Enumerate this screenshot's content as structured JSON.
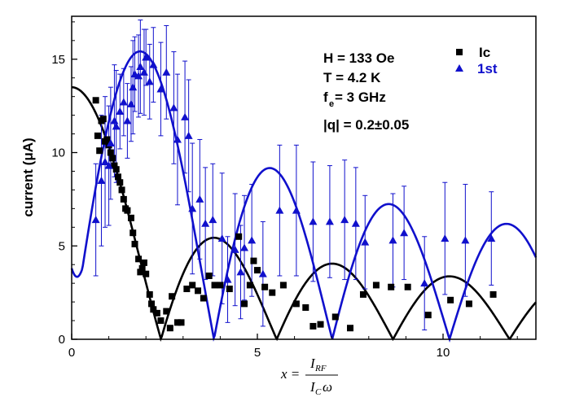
{
  "chart_data": {
    "type": "scatter",
    "title": "",
    "xlabel_parts": {
      "lhs": "x = ",
      "num": "I",
      "num_sub": "RF",
      "den": "I",
      "den_sub": "C",
      "den_tail": "ω"
    },
    "ylabel": "current (μA)",
    "xlim": [
      0,
      12.5
    ],
    "ylim": [
      0,
      17.3
    ],
    "xticks": [
      0,
      5,
      10
    ],
    "yticks": [
      0,
      5,
      10,
      15
    ],
    "xtick_labels": [
      "0",
      "5",
      "10"
    ],
    "ytick_labels": [
      "0",
      "5",
      "10",
      "15"
    ],
    "legend_position": "top-right",
    "annotations": [
      "H = 133 Oe",
      "T = 4.2 K",
      "f",
      "e",
      " = 3 GHz",
      "|q| = 0.2±0.05"
    ],
    "series": [
      {
        "name": "Ic",
        "marker": "square",
        "color": "#000000",
        "points": [
          [
            0.65,
            12.8
          ],
          [
            0.7,
            10.9
          ],
          [
            0.75,
            10.1
          ],
          [
            0.8,
            11.7
          ],
          [
            0.85,
            11.8
          ],
          [
            0.9,
            10.6
          ],
          [
            0.95,
            10.7
          ],
          [
            1.0,
            10.4
          ],
          [
            1.05,
            10.0
          ],
          [
            1.1,
            9.7
          ],
          [
            1.15,
            9.3
          ],
          [
            1.2,
            9.1
          ],
          [
            1.25,
            8.7
          ],
          [
            1.3,
            8.4
          ],
          [
            1.35,
            8.0
          ],
          [
            1.4,
            7.5
          ],
          [
            1.45,
            7.0
          ],
          [
            1.5,
            6.9
          ],
          [
            1.6,
            6.5
          ],
          [
            1.65,
            5.7
          ],
          [
            1.7,
            5.1
          ],
          [
            1.8,
            4.3
          ],
          [
            1.85,
            3.6
          ],
          [
            1.9,
            3.8
          ],
          [
            1.95,
            4.1
          ],
          [
            2.0,
            3.5
          ],
          [
            2.1,
            2.4
          ],
          [
            2.15,
            1.9
          ],
          [
            2.2,
            1.6
          ],
          [
            2.3,
            1.4
          ],
          [
            2.4,
            1.0
          ],
          [
            2.55,
            1.5
          ],
          [
            2.65,
            0.6
          ],
          [
            2.7,
            2.3
          ],
          [
            2.85,
            0.9
          ],
          [
            2.95,
            0.9
          ],
          [
            3.1,
            2.7
          ],
          [
            3.25,
            2.9
          ],
          [
            3.4,
            2.6
          ],
          [
            3.55,
            2.2
          ],
          [
            3.7,
            3.4
          ],
          [
            3.85,
            2.9
          ],
          [
            4.0,
            2.9
          ],
          [
            4.25,
            2.7
          ],
          [
            4.5,
            5.5
          ],
          [
            4.65,
            1.9
          ],
          [
            4.8,
            2.9
          ],
          [
            4.9,
            4.2
          ],
          [
            5.0,
            3.7
          ],
          [
            5.2,
            2.8
          ],
          [
            5.4,
            2.5
          ],
          [
            5.7,
            2.9
          ],
          [
            6.05,
            1.9
          ],
          [
            6.3,
            1.7
          ],
          [
            6.5,
            0.7
          ],
          [
            6.7,
            0.8
          ],
          [
            7.1,
            1.2
          ],
          [
            7.5,
            0.6
          ],
          [
            7.85,
            2.4
          ],
          [
            8.2,
            2.9
          ],
          [
            8.6,
            2.8
          ],
          [
            9.05,
            2.8
          ],
          [
            9.6,
            1.3
          ],
          [
            10.2,
            2.1
          ],
          [
            10.7,
            1.9
          ],
          [
            11.35,
            2.4
          ]
        ]
      },
      {
        "name": "1st",
        "marker": "triangle",
        "color": "#1010cc",
        "points": [
          [
            0.65,
            6.4,
            3.0
          ],
          [
            0.8,
            8.5,
            3.5
          ],
          [
            0.9,
            9.5,
            3.5
          ],
          [
            1.0,
            9.3,
            3.2
          ],
          [
            1.05,
            10.5,
            3.0
          ],
          [
            1.15,
            11.7,
            3.0
          ],
          [
            1.2,
            11.4,
            3.0
          ],
          [
            1.3,
            12.2,
            2.0
          ],
          [
            1.4,
            12.7,
            1.8
          ],
          [
            1.5,
            11.7,
            2.0
          ],
          [
            1.6,
            12.6,
            2.0
          ],
          [
            1.65,
            13.5,
            2.5
          ],
          [
            1.7,
            14.2,
            2.0
          ],
          [
            1.8,
            14.1,
            2.2
          ],
          [
            1.85,
            14.6,
            2.5
          ],
          [
            1.95,
            14.3,
            2.3
          ],
          [
            2.0,
            15.1,
            1.5
          ],
          [
            2.1,
            13.8,
            2.0
          ],
          [
            2.2,
            14.7,
            2.0
          ],
          [
            2.4,
            13.4,
            2.5
          ],
          [
            2.55,
            14.3,
            2.5
          ],
          [
            2.75,
            12.4,
            3.0
          ],
          [
            2.85,
            10.7,
            3.5
          ],
          [
            3.05,
            11.9,
            3.0
          ],
          [
            3.15,
            10.9,
            3.0
          ],
          [
            3.25,
            7.0,
            3.5
          ],
          [
            3.45,
            7.5,
            3.2
          ],
          [
            3.6,
            6.2,
            3.0
          ],
          [
            3.8,
            6.4,
            3.0
          ],
          [
            4.05,
            5.4,
            3.5
          ],
          [
            4.2,
            3.2,
            2.3
          ],
          [
            4.4,
            4.8,
            3.0
          ],
          [
            4.55,
            3.6,
            2.5
          ],
          [
            4.65,
            4.9,
            2.8
          ],
          [
            4.85,
            5.3,
            3.0
          ],
          [
            5.15,
            3.5,
            2.8
          ],
          [
            5.6,
            6.9,
            3.5
          ],
          [
            6.05,
            6.9,
            3.5
          ],
          [
            6.5,
            6.3,
            3.2
          ],
          [
            6.95,
            6.3,
            3.0
          ],
          [
            7.35,
            6.4,
            3.2
          ],
          [
            7.65,
            6.2,
            3.0
          ],
          [
            7.9,
            5.2,
            2.5
          ],
          [
            8.65,
            5.3,
            2.5
          ],
          [
            8.95,
            5.7,
            2.5
          ],
          [
            9.5,
            3.0,
            2.5
          ],
          [
            10.05,
            5.4,
            3.0
          ],
          [
            10.6,
            5.3,
            3.0
          ],
          [
            11.3,
            5.4,
            2.5
          ]
        ]
      }
    ],
    "fit_curves": [
      {
        "series": "Ic",
        "color": "#000000",
        "amplitude": 13.5,
        "zeros": [
          2.405,
          5.52,
          8.654,
          11.79
        ],
        "function": "amplitude*|J0(x)|"
      },
      {
        "series": "1st",
        "color": "#1010cc",
        "amplitude": 26.5,
        "zeros": [
          3.832,
          7.016,
          10.17
        ],
        "function": "amplitude*|J1(x)|",
        "offset_at_zero": 3.8
      }
    ]
  }
}
